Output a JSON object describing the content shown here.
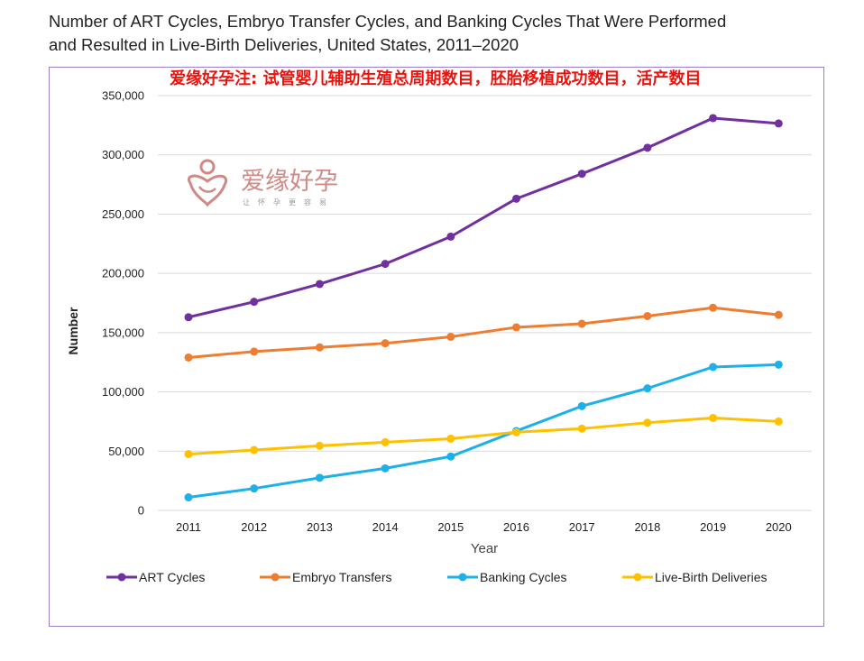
{
  "header": {
    "title_line1": "Number of ART Cycles, Embryo Transfer Cycles, and Banking Cycles That Were Performed",
    "title_line2": "and Resulted in Live-Birth Deliveries, United States, 2011–2020"
  },
  "annotation": {
    "note": "爱缘好孕注: 试管婴儿辅助生殖总周期数目，胚胎移植成功数目，活产数目"
  },
  "watermark": {
    "brand": "爱缘好孕",
    "slogan": "让怀孕更容易"
  },
  "colors": {
    "art": "#7030a0",
    "transfer": "#ed7d31",
    "banking": "#1eb0e8",
    "live": "#ffc000",
    "frame": "#9b7ec8",
    "grid": "#d9d9d9"
  },
  "chart_data": {
    "type": "line",
    "title": "Number of ART Cycles, Embryo Transfer Cycles, and Banking Cycles That Were Performed and Resulted in Live-Birth Deliveries, United States, 2011–2020",
    "xlabel": "Year",
    "ylabel": "Number",
    "categories": [
      "2011",
      "2012",
      "2013",
      "2014",
      "2015",
      "2016",
      "2017",
      "2018",
      "2019",
      "2020"
    ],
    "ylim": [
      0,
      350000
    ],
    "yticks": [
      0,
      50000,
      100000,
      150000,
      200000,
      250000,
      300000,
      350000
    ],
    "ytick_labels": [
      "0",
      "50,000",
      "100,000",
      "150,000",
      "200,000",
      "250,000",
      "300,000",
      "350,000"
    ],
    "grid": true,
    "legend_position": "bottom",
    "series": [
      {
        "name": "ART Cycles",
        "color_key": "art",
        "values": [
          163000,
          176000,
          191000,
          208000,
          231000,
          263000,
          284000,
          306000,
          331000,
          326500
        ]
      },
      {
        "name": "Embryo Transfers",
        "color_key": "transfer",
        "values": [
          129000,
          134000,
          137500,
          141000,
          146500,
          154500,
          157500,
          164000,
          171000,
          165000
        ]
      },
      {
        "name": "Banking Cycles",
        "color_key": "banking",
        "values": [
          11000,
          18500,
          27500,
          35500,
          45500,
          67000,
          88000,
          103000,
          121000,
          123000
        ]
      },
      {
        "name": "Live-Birth Deliveries",
        "color_key": "live",
        "values": [
          47500,
          51000,
          54500,
          57500,
          60500,
          66000,
          69000,
          74000,
          78000,
          75000
        ]
      }
    ]
  }
}
